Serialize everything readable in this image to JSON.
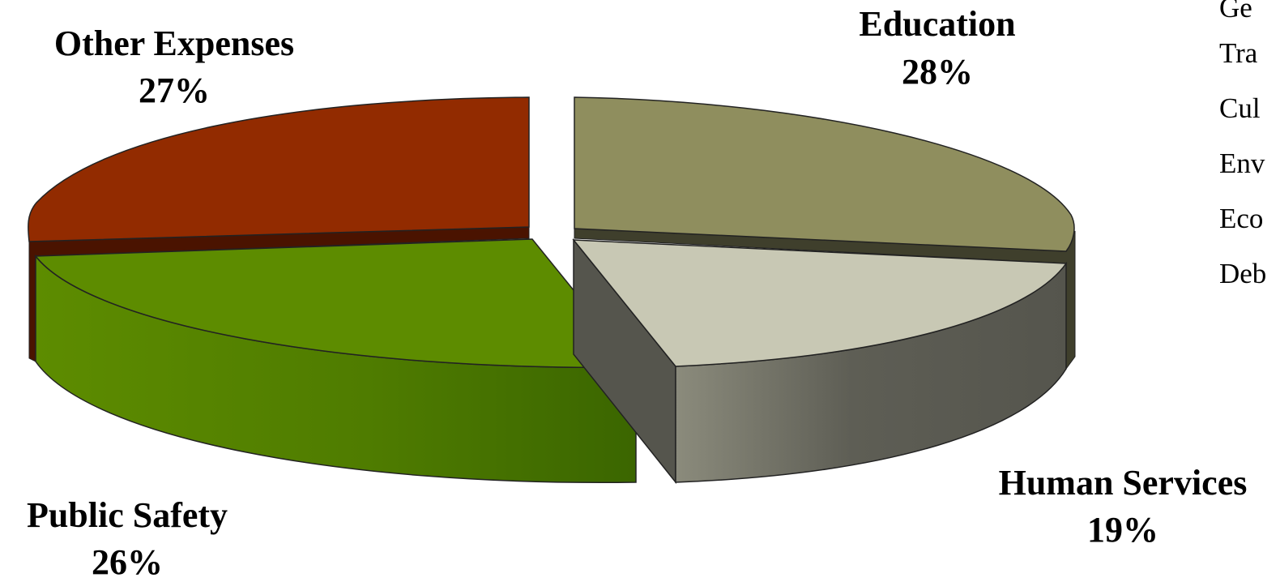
{
  "chart_data": {
    "type": "pie",
    "style": "3d-exploded",
    "slices": [
      {
        "label": "Education",
        "value": 28,
        "display": "28%",
        "color": "#8f8e5e",
        "light": "#c7c7b3"
      },
      {
        "label": "Human Services",
        "value": 19,
        "display": "19%",
        "color": "#c8c8b4",
        "dark": "#55554d"
      },
      {
        "label": "Public Safety",
        "value": 26,
        "display": "26%",
        "color": "#5d8c00",
        "dark": "#3b6600"
      },
      {
        "label": "Other Expenses",
        "value": 27,
        "display": "27%",
        "color": "#922b00",
        "dark": "#5a1a00"
      }
    ],
    "legend": {
      "position": "right (partially cut off)",
      "items": [
        "Ge",
        "Tra",
        "Cul",
        "Env",
        "Eco",
        "Deb"
      ]
    }
  }
}
